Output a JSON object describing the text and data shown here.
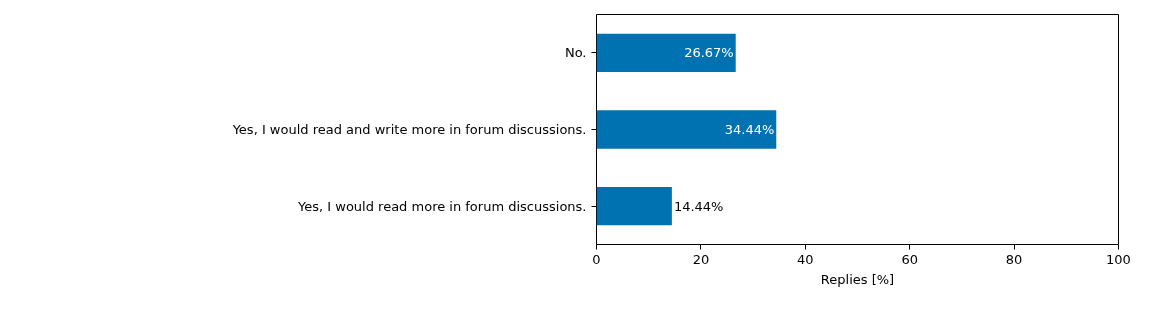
{
  "chart_data": {
    "type": "bar",
    "orientation": "horizontal",
    "xlabel": "Replies [%]",
    "categories": [
      "No.",
      "Yes, I would read and write more in forum discussions.",
      "Yes, I would read more in forum discussions."
    ],
    "values": [
      26.67,
      34.44,
      14.44
    ],
    "value_labels": [
      "26.67%",
      "34.44%",
      "14.44%"
    ],
    "color": "#0072b2",
    "xlim": [
      0,
      100
    ],
    "xticks": [
      0,
      20,
      40,
      60,
      80,
      100
    ],
    "grid": false
  }
}
